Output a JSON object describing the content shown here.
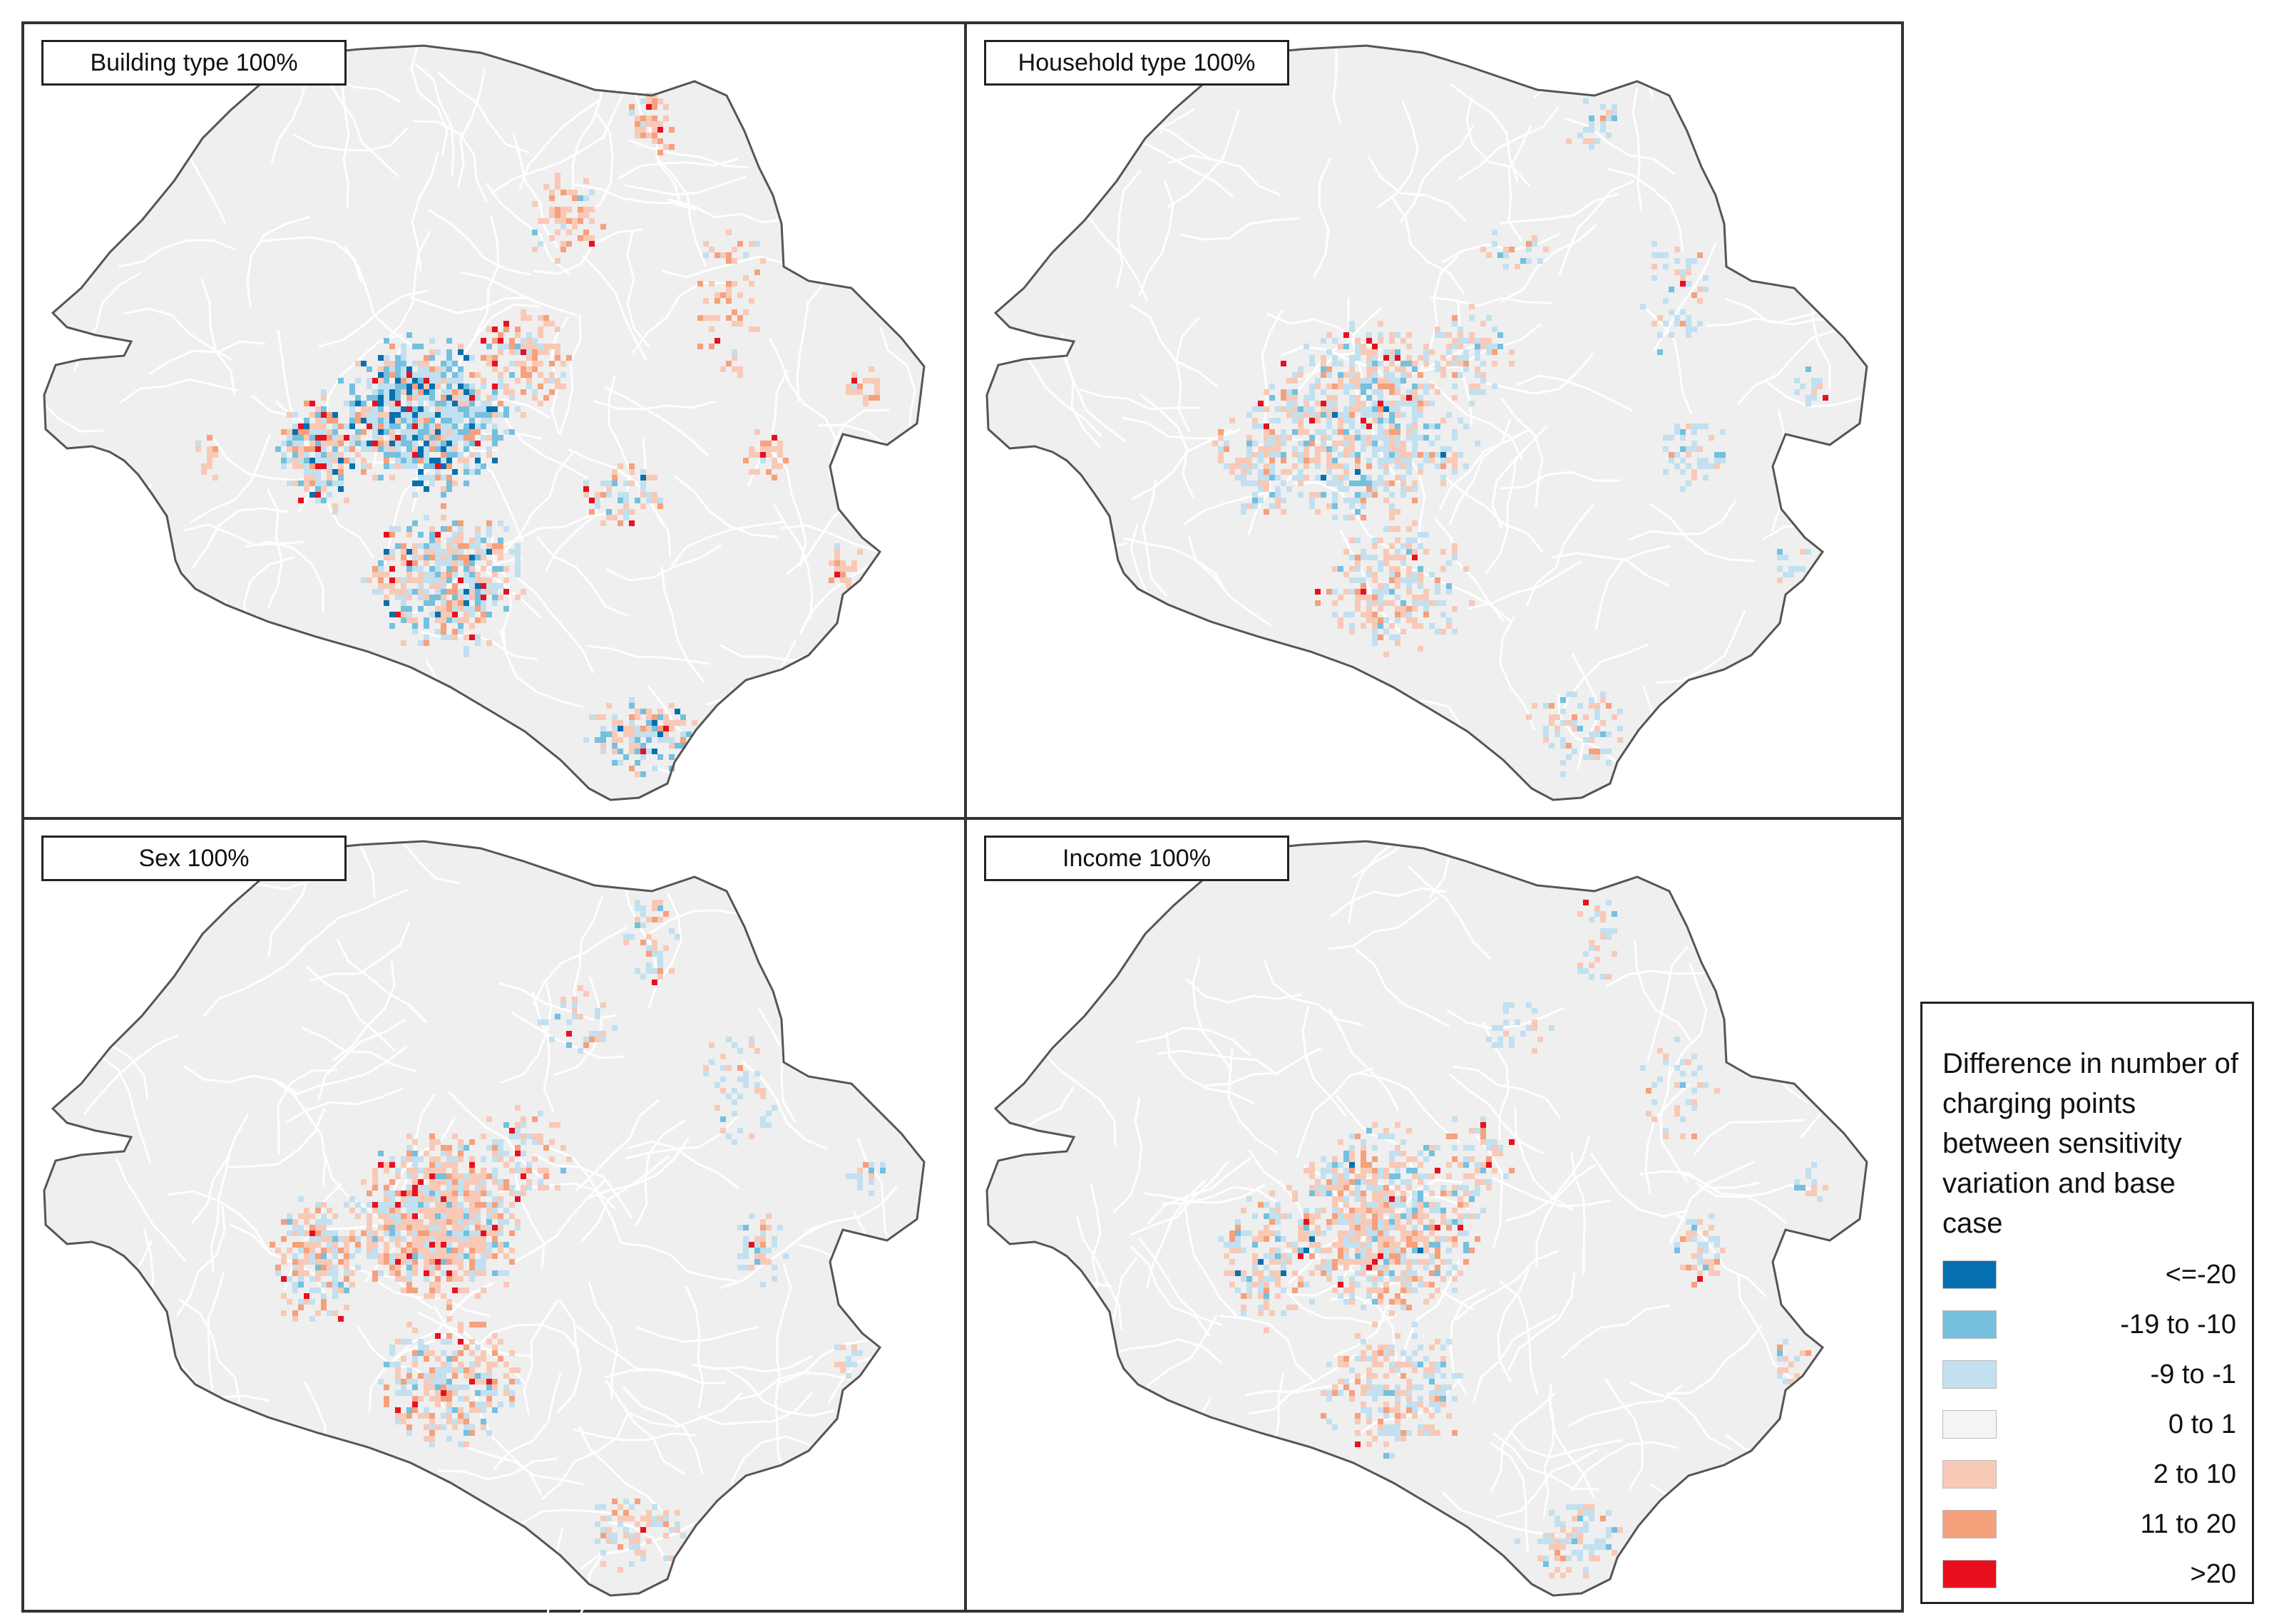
{
  "panels": [
    {
      "label": "Building type 100%",
      "profile": "building"
    },
    {
      "label": "Household type 100%",
      "profile": "household"
    },
    {
      "label": "Sex 100%",
      "profile": "sex"
    },
    {
      "label": "Income 100%",
      "profile": "income"
    }
  ],
  "legend": {
    "title": "Difference in number of charging points between sensitivity variation and base case",
    "classes": [
      {
        "label": "<=-20",
        "color": "#0570b0"
      },
      {
        "label": "-19 to -10",
        "color": "#74c0de"
      },
      {
        "label": "-9 to -1",
        "color": "#c2e0ef"
      },
      {
        "label": "0 to 1",
        "color": "#f4f4f4"
      },
      {
        "label": "2 to 10",
        "color": "#f9c9b7"
      },
      {
        "label": "11 to 20",
        "color": "#f6a07c"
      },
      {
        "label": ">20",
        "color": "#e8101e"
      }
    ]
  },
  "colors": {
    "land": "#efefef",
    "outline": "#555555",
    "roads": "#ffffff"
  }
}
